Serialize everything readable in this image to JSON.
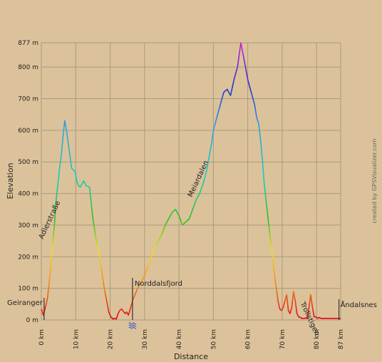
{
  "chart_data": {
    "type": "line",
    "xlabel": "Distance",
    "ylabel": "Elevation",
    "xlim": [
      0,
      87
    ],
    "ylim": [
      0,
      877
    ],
    "x_ticks": [
      {
        "value": 0,
        "label": "0 km"
      },
      {
        "value": 10,
        "label": "10 km"
      },
      {
        "value": 20,
        "label": "20 km"
      },
      {
        "value": 30,
        "label": "30 km"
      },
      {
        "value": 40,
        "label": "40 km"
      },
      {
        "value": 50,
        "label": "50 km"
      },
      {
        "value": 60,
        "label": "60 km"
      },
      {
        "value": 70,
        "label": "70 km"
      },
      {
        "value": 80,
        "label": "80 km"
      },
      {
        "value": 87,
        "label": "87 km"
      }
    ],
    "y_ticks": [
      {
        "value": 0,
        "label": "0 m"
      },
      {
        "value": 100,
        "label": "100 m"
      },
      {
        "value": 200,
        "label": "200 m"
      },
      {
        "value": 300,
        "label": "300 m"
      },
      {
        "value": 400,
        "label": "400 m"
      },
      {
        "value": 500,
        "label": "500 m"
      },
      {
        "value": 600,
        "label": "600 m"
      },
      {
        "value": 700,
        "label": "700 m"
      },
      {
        "value": 800,
        "label": "800 m"
      },
      {
        "value": 877,
        "label": "877 m"
      }
    ],
    "grid": true,
    "series": [
      {
        "x": [
          0,
          0.6,
          1.2,
          1.8,
          2.3,
          2.8,
          3.3,
          3.8,
          4.3,
          4.8,
          5.3,
          5.8,
          6.3,
          6.8,
          7.3,
          7.8,
          8.3,
          8.8,
          9.3,
          9.8,
          10.3,
          10.8,
          11.3,
          11.8,
          12.3,
          13,
          14,
          15,
          16,
          17,
          17.6,
          18.3,
          19,
          19.6,
          20.2,
          20.8,
          21.3,
          21.8,
          22.3,
          22.8,
          23.3,
          23.8,
          24.3,
          24.8,
          25.3,
          26,
          26.5,
          27.2,
          28,
          29,
          30,
          31,
          32,
          33,
          34,
          35,
          36,
          37,
          38,
          39,
          40,
          41,
          42,
          43,
          44,
          45,
          46,
          47,
          48,
          48.5,
          49,
          49.5,
          50,
          51,
          52,
          53,
          54,
          55,
          56,
          57,
          58,
          59,
          60,
          61,
          62,
          62.6,
          63.2,
          63.8,
          64.3,
          64.8,
          65.3,
          65.8,
          66.3,
          66.8,
          67.3,
          67.8,
          68.3,
          68.8,
          69.3,
          69.8,
          70.3,
          70.8,
          71.3,
          71.8,
          72.3,
          72.8,
          73.3,
          73.8,
          74.3,
          74.8,
          75.3,
          75.8,
          76.3,
          76.8,
          77.3,
          77.8,
          78.3,
          78.8,
          79.3,
          79.8,
          80.3,
          80.8,
          81.3,
          81.8,
          82.3,
          82.8,
          83.3,
          83.8,
          84.3,
          85,
          85.6,
          86.3,
          87
        ],
        "y": [
          35,
          15,
          40,
          70,
          120,
          180,
          240,
          300,
          380,
          430,
          480,
          520,
          580,
          630,
          600,
          560,
          520,
          480,
          475,
          470,
          440,
          425,
          420,
          430,
          440,
          425,
          420,
          320,
          250,
          200,
          150,
          100,
          60,
          25,
          10,
          3,
          5,
          3,
          20,
          30,
          35,
          28,
          20,
          25,
          15,
          40,
          60,
          80,
          100,
          120,
          140,
          170,
          200,
          230,
          250,
          270,
          300,
          320,
          340,
          350,
          330,
          300,
          310,
          320,
          350,
          380,
          400,
          430,
          470,
          500,
          530,
          560,
          600,
          640,
          680,
          720,
          730,
          710,
          760,
          800,
          877,
          820,
          760,
          720,
          680,
          640,
          620,
          560,
          500,
          430,
          380,
          330,
          280,
          240,
          190,
          140,
          100,
          60,
          35,
          30,
          40,
          60,
          80,
          30,
          20,
          40,
          90,
          60,
          20,
          10,
          8,
          5,
          5,
          6,
          5,
          40,
          80,
          40,
          10,
          10,
          5,
          8,
          5,
          5,
          5,
          5,
          5,
          5,
          5,
          5,
          5,
          5,
          5
        ]
      }
    ],
    "annotations": [
      {
        "label": "Geiranger",
        "x": 0.8
      },
      {
        "label": "Adlerstraße",
        "x": 3.8
      },
      {
        "label": "Norddalsfjord",
        "x": 26.5
      },
      {
        "label": "Meiardalen",
        "x": 47
      },
      {
        "label": "Trollstigen",
        "x": 74
      },
      {
        "label": "Åndalsnes",
        "x": 86.5
      }
    ],
    "water_symbol": "ferry-water-icon",
    "colors": {
      "background": "#dcc29a",
      "grid": "#a89a7f",
      "low": "#e0000e",
      "mid": "#00b000",
      "high": "#3a48d8",
      "peak": "#b000b0"
    }
  },
  "credit": "created by GPSVisualizer.com"
}
